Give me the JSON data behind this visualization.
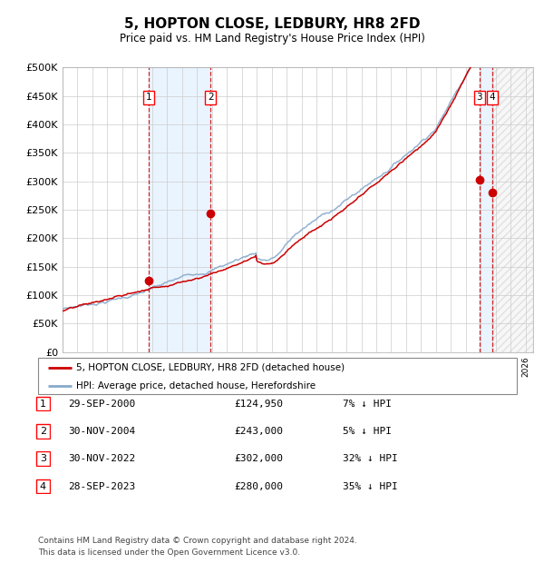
{
  "title": "5, HOPTON CLOSE, LEDBURY, HR8 2FD",
  "subtitle": "Price paid vs. HM Land Registry's House Price Index (HPI)",
  "ylim": [
    0,
    500000
  ],
  "yticks": [
    0,
    50000,
    100000,
    150000,
    200000,
    250000,
    300000,
    350000,
    400000,
    450000,
    500000
  ],
  "xlim_start": 1995.0,
  "xlim_end": 2026.5,
  "legend_entries": [
    "5, HOPTON CLOSE, LEDBURY, HR8 2FD (detached house)",
    "HPI: Average price, detached house, Herefordshire"
  ],
  "legend_colors": [
    "#cc0000",
    "#88aacc"
  ],
  "sale_dates": [
    2000.75,
    2004.917,
    2022.917,
    2023.75
  ],
  "sale_prices": [
    124950,
    243000,
    302000,
    280000
  ],
  "sale_labels": [
    "1",
    "2",
    "3",
    "4"
  ],
  "sale_color": "#cc0000",
  "hpi_color": "#88aacc",
  "shade_color": "#ddeeff",
  "dashed_color": "#cc0000",
  "footnote1": "Contains HM Land Registry data © Crown copyright and database right 2024.",
  "footnote2": "This data is licensed under the Open Government Licence v3.0.",
  "table_rows": [
    [
      "1",
      "29-SEP-2000",
      "£124,950",
      "7% ↓ HPI"
    ],
    [
      "2",
      "30-NOV-2004",
      "£243,000",
      "5% ↓ HPI"
    ],
    [
      "3",
      "30-NOV-2022",
      "£302,000",
      "32% ↓ HPI"
    ],
    [
      "4",
      "28-SEP-2023",
      "£280,000",
      "35% ↓ HPI"
    ]
  ],
  "background_color": "#ffffff",
  "grid_color": "#cccccc"
}
